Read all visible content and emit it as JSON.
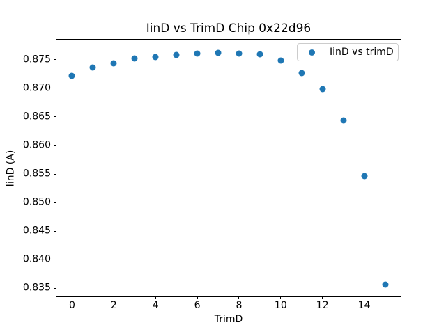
{
  "chart_data": {
    "type": "scatter",
    "title": "IinD vs TrimD Chip 0x22d96",
    "xlabel": "TrimD",
    "ylabel": "IinD (A)",
    "legend_entries": [
      "IinD vs trimD"
    ],
    "legend_position": "upper right",
    "marker_color": "#1f77b4",
    "background_color": "#ffffff",
    "grid": false,
    "x": [
      0,
      1,
      2,
      3,
      4,
      5,
      6,
      7,
      8,
      9,
      10,
      11,
      12,
      13,
      14,
      15
    ],
    "y": [
      0.8722,
      0.8736,
      0.8744,
      0.8752,
      0.8755,
      0.8758,
      0.8761,
      0.8762,
      0.8761,
      0.8759,
      0.8748,
      0.8726,
      0.8698,
      0.8644,
      0.8546,
      0.8357
    ],
    "xlim": [
      -0.75,
      15.75
    ],
    "ylim": [
      0.8336,
      0.8785
    ],
    "xticks": [
      0,
      2,
      4,
      6,
      8,
      10,
      12,
      14
    ],
    "yticks": [
      0.835,
      0.84,
      0.845,
      0.85,
      0.855,
      0.86,
      0.865,
      0.87,
      0.875
    ]
  }
}
